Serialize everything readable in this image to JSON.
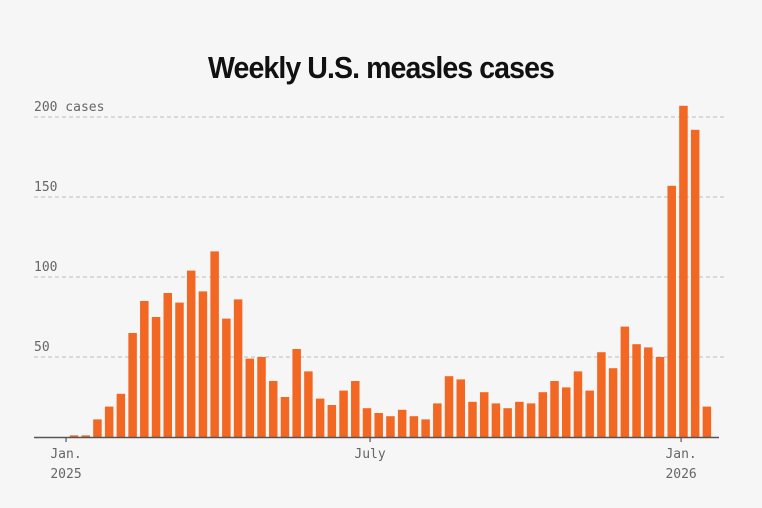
{
  "chart_data": {
    "type": "bar",
    "title": "Weekly U.S. measles cases",
    "ylabel": "",
    "xlabel": "",
    "ylim": [
      0,
      210
    ],
    "yticks": [
      {
        "value": 50,
        "label": "50"
      },
      {
        "value": 100,
        "label": "100"
      },
      {
        "value": 150,
        "label": "150"
      },
      {
        "value": 200,
        "label": "200 cases"
      }
    ],
    "xticks": [
      {
        "label": "Jan.",
        "sublabel": "2025"
      },
      {
        "label": "July",
        "sublabel": ""
      },
      {
        "label": "Jan.",
        "sublabel": "2026"
      }
    ],
    "grid": true,
    "color": "#f26722",
    "values": [
      1,
      1,
      11,
      19,
      27,
      65,
      85,
      75,
      90,
      84,
      104,
      91,
      116,
      74,
      86,
      49,
      50,
      35,
      25,
      55,
      41,
      24,
      20,
      29,
      35,
      18,
      15,
      13,
      17,
      13,
      11,
      21,
      38,
      36,
      22,
      28,
      21,
      18,
      22,
      21,
      28,
      35,
      31,
      41,
      29,
      53,
      43,
      69,
      58,
      56,
      50,
      157,
      207,
      192,
      19
    ]
  }
}
